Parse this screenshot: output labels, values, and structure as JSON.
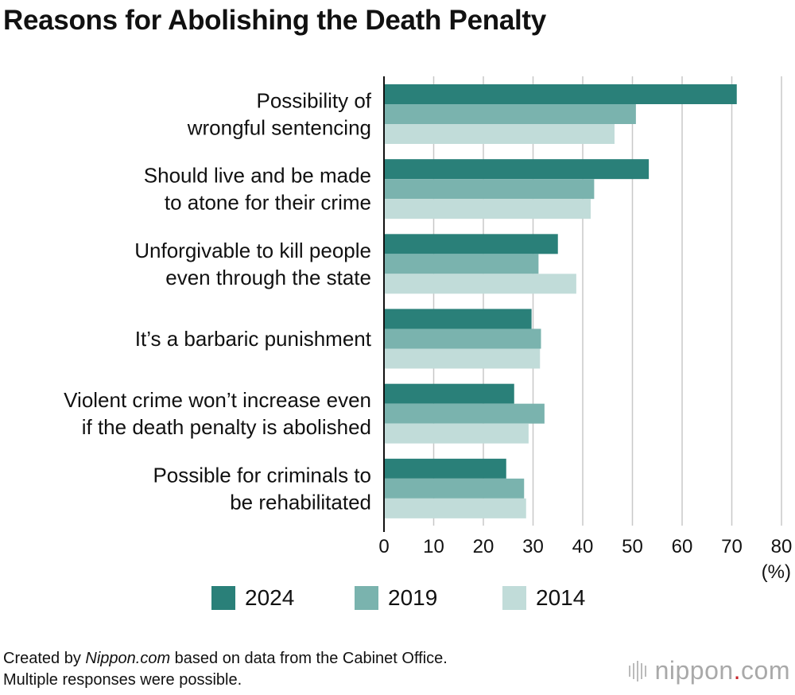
{
  "title": "Reasons for Abolishing the Death Penalty",
  "chart_data": {
    "type": "bar",
    "orientation": "horizontal",
    "categories": [
      [
        "Possibility of",
        "wrongful sentencing"
      ],
      [
        "Should live and be made",
        "to atone for their crime"
      ],
      [
        "Unforgivable to kill people",
        "even through the state"
      ],
      [
        "It’s a barbaric punishment"
      ],
      [
        "Violent crime won’t increase even",
        "if the death penalty is abolished"
      ],
      [
        "Possible for criminals to",
        "be rehabilitated"
      ]
    ],
    "series": [
      {
        "name": "2024",
        "color": "#2a8079",
        "values": [
          71.0,
          53.3,
          35.0,
          29.7,
          26.2,
          24.6
        ]
      },
      {
        "name": "2019",
        "color": "#7ab3ae",
        "values": [
          50.7,
          42.3,
          31.1,
          31.6,
          32.3,
          28.2
        ]
      },
      {
        "name": "2014",
        "color": "#c1dcd9",
        "values": [
          46.4,
          41.6,
          38.7,
          31.4,
          29.1,
          28.6
        ]
      }
    ],
    "xlim": [
      0,
      80
    ],
    "xticks": [
      0,
      10,
      20,
      30,
      40,
      50,
      60,
      70,
      80
    ],
    "xunit": "(%)",
    "grid": true,
    "legend_position": "bottom"
  },
  "legend": {
    "items": [
      {
        "label": "2024",
        "color": "#2a8079"
      },
      {
        "label": "2019",
        "color": "#7ab3ae"
      },
      {
        "label": "2014",
        "color": "#c1dcd9"
      }
    ]
  },
  "footer": {
    "prefix": "Created by ",
    "source_name": "Nippon.com",
    "suffix": " based on data from the Cabinet Office.",
    "note": "Multiple responses were possible."
  },
  "brand": {
    "name": "nippon",
    "dot": ".",
    "tld": "com"
  }
}
